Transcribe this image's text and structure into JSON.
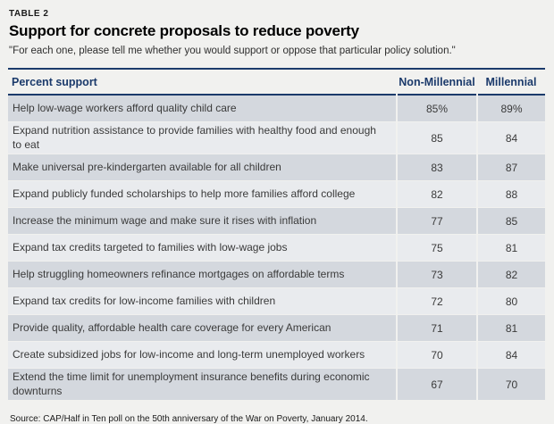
{
  "header": {
    "table_label": "TABLE 2",
    "title": "Support for concrete proposals to reduce poverty",
    "subtitle": "\"For each one, please tell me whether you would support or oppose that particular policy solution.\""
  },
  "table": {
    "columns": {
      "proposal": "Percent support",
      "non_millennial": "Non-Millennial",
      "millennial": "Millennial"
    },
    "rows": [
      {
        "proposal": "Help low-wage workers afford quality child care",
        "non_millennial": "85%",
        "millennial": "89%"
      },
      {
        "proposal": "Expand nutrition assistance to provide families with healthy food and enough to eat",
        "non_millennial": "85",
        "millennial": "84"
      },
      {
        "proposal": "Make universal pre-kindergarten available for all children",
        "non_millennial": "83",
        "millennial": "87"
      },
      {
        "proposal": "Expand publicly funded scholarships to help more families afford college",
        "non_millennial": "82",
        "millennial": "88"
      },
      {
        "proposal": "Increase the minimum wage and make sure it rises with inflation",
        "non_millennial": "77",
        "millennial": "85"
      },
      {
        "proposal": "Expand tax credits targeted to families with low-wage jobs",
        "non_millennial": "75",
        "millennial": "81"
      },
      {
        "proposal": "Help struggling homeowners refinance mortgages on affordable terms",
        "non_millennial": "73",
        "millennial": "82"
      },
      {
        "proposal": "Expand tax credits for low-income families with children",
        "non_millennial": "72",
        "millennial": "80"
      },
      {
        "proposal": "Provide quality, affordable health care coverage for every American",
        "non_millennial": "71",
        "millennial": "81"
      },
      {
        "proposal": "Create subsidized jobs for low-income and long-term unemployed workers",
        "non_millennial": "70",
        "millennial": "84"
      },
      {
        "proposal": "Extend the time limit for unemployment insurance benefits during economic downturns",
        "non_millennial": "67",
        "millennial": "70"
      }
    ]
  },
  "footer": {
    "source": "Source: CAP/Half in Ten poll on the 50th anniversary of the War on Poverty, January 2014."
  },
  "colors": {
    "accent_navy": "#1b3a6b",
    "row_dark": "#d4d8de",
    "row_light": "#e9ebee",
    "page_background": "#f1f1ef",
    "body_text": "#3a3a3a"
  },
  "chart_data": {
    "type": "table",
    "title": "Support for concrete proposals to reduce poverty",
    "subtitle": "\"For each one, please tell me whether you would support or oppose that particular policy solution.\"",
    "columns": [
      "Percent support",
      "Non-Millennial",
      "Millennial"
    ],
    "categories": [
      "Help low-wage workers afford quality child care",
      "Expand nutrition assistance to provide families with healthy food and enough to eat",
      "Make universal pre-kindergarten available for all children",
      "Expand publicly funded scholarships to help more families afford college",
      "Increase the minimum wage and make sure it rises with inflation",
      "Expand tax credits targeted to families with low-wage jobs",
      "Help struggling homeowners refinance mortgages on affordable terms",
      "Expand tax credits for low-income families with children",
      "Provide quality, affordable health care coverage for every American",
      "Create subsidized jobs for low-income and long-term unemployed workers",
      "Extend the time limit for unemployment insurance benefits during economic downturns"
    ],
    "series": [
      {
        "name": "Non-Millennial",
        "values": [
          85,
          85,
          83,
          82,
          77,
          75,
          73,
          72,
          71,
          70,
          67
        ]
      },
      {
        "name": "Millennial",
        "values": [
          89,
          84,
          87,
          88,
          85,
          81,
          82,
          80,
          81,
          84,
          70
        ]
      }
    ],
    "units": "percent support",
    "source": "Source: CAP/Half in Ten poll on the 50th anniversary of the War on Poverty, January 2014."
  }
}
